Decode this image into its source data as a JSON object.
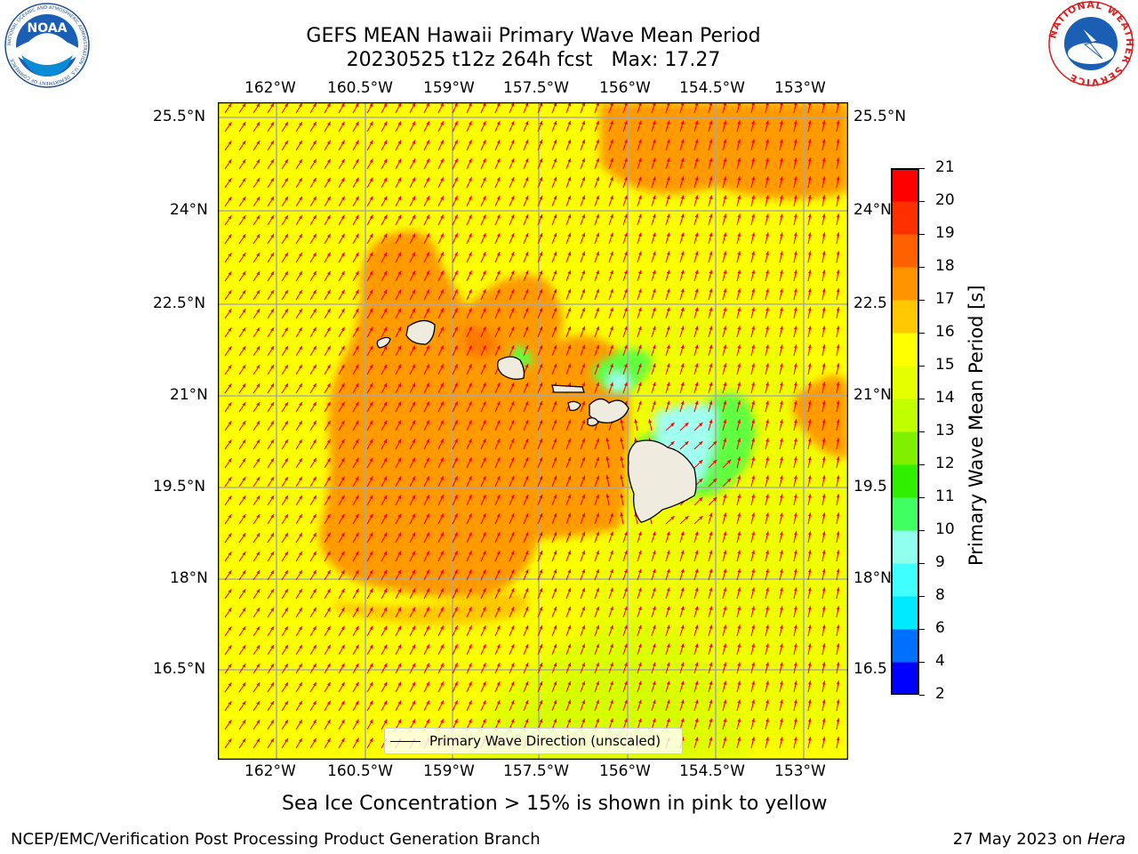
{
  "title_line1": "GEFS MEAN Hawaii Primary Wave Mean Period",
  "title_line2": "20230525 t12z 264h fcst   Max: 17.27",
  "lon_labels": [
    "162°W",
    "160.5°W",
    "159°W",
    "157.5°W",
    "156°W",
    "154.5°W",
    "153°W"
  ],
  "lat_labels": [
    "25.5°N",
    "24°N",
    "22.5°N",
    "21°N",
    "19.5°N",
    "18°N",
    "16.5°N"
  ],
  "lat_labels_right": [
    "25.5°N",
    "24°N",
    "22.5",
    "21°N",
    "19.5",
    "18°N",
    "16.5"
  ],
  "colorbar": {
    "label": "Primary Wave Mean Period [s]",
    "ticks": [
      "2",
      "4",
      "6",
      "8",
      "9",
      "10",
      "11",
      "12",
      "13",
      "14",
      "15",
      "16",
      "17",
      "18",
      "19",
      "20",
      "21"
    ],
    "colors": [
      "#0000ff",
      "#0070ff",
      "#00eaff",
      "#40ffff",
      "#90ffee",
      "#40ff60",
      "#30f000",
      "#80f000",
      "#c0ff00",
      "#e6ff00",
      "#ffff00",
      "#ffc800",
      "#ff9400",
      "#ff6000",
      "#ff3000",
      "#ff0000"
    ]
  },
  "map": {
    "background_color": "#ffff00",
    "dominant_color": "#ff9a00",
    "arrow_color": "#ff0000",
    "land_color": "#efebde",
    "grid_color": "#a8a8a8"
  },
  "legend_text": "Primary Wave Direction (unscaled)",
  "sea_ice_note": "Sea Ice Concentration > 15% is shown in pink to yellow",
  "footer_left": "NCEP/EMC/Verification Post Processing Product Generation Branch",
  "footer_right_date": "27 May 2023 on ",
  "footer_right_host": "Hera",
  "logo_left_text": "NOAA",
  "logo_left_ring": "NATIONAL OCEANIC AND ATMOSPHERIC ADMINISTRATION · U.S. DEPARTMENT OF COMMERCE",
  "logo_right_ring": "NATIONAL WEATHER SERVICE"
}
